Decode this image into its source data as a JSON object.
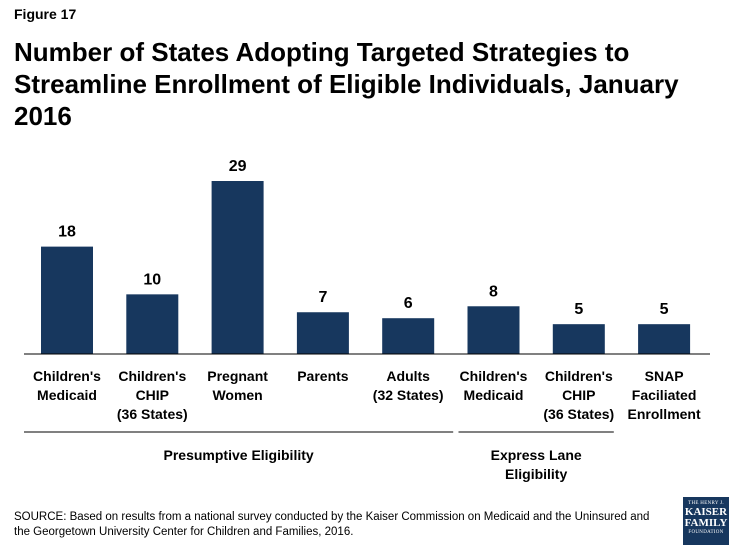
{
  "figure_label": "Figure 17",
  "title_lines": [
    "Number of States Adopting Targeted Strategies to",
    "Streamline Enrollment of Eligible Individuals, January 2016"
  ],
  "source_text": "SOURCE: Based on results from a national survey conducted by the Kaiser Commission on Medicaid and the Uninsured and the Georgetown University Center for Children and Families, 2016.",
  "logo": {
    "line1": "THE HENRY J.",
    "line2": "KAISER",
    "line3": "FAMILY",
    "line4": "FOUNDATION"
  },
  "colors": {
    "bar": "#17375e",
    "axis": "#000000",
    "text": "#000000"
  },
  "chart_data": {
    "type": "bar",
    "categories": [
      [
        "Children's",
        "Medicaid"
      ],
      [
        "Children's",
        "CHIP",
        "(36 States)"
      ],
      [
        "Pregnant",
        "Women"
      ],
      [
        "Parents"
      ],
      [
        "Adults",
        "(32 States)"
      ],
      [
        "Children's",
        "Medicaid"
      ],
      [
        "Children's",
        "CHIP",
        "(36 States)"
      ],
      [
        "SNAP",
        "Faciliated",
        "Enrollment"
      ]
    ],
    "values": [
      18,
      10,
      29,
      7,
      6,
      8,
      5,
      5
    ],
    "ylim": [
      0,
      29
    ],
    "show_data_labels": true,
    "grid": false,
    "groups": [
      {
        "label_lines": [
          "Presumptive Eligibility"
        ],
        "categories": [
          0,
          1,
          2,
          3,
          4
        ]
      },
      {
        "label_lines": [
          "Express Lane",
          "Eligibility"
        ],
        "categories": [
          5,
          6
        ]
      }
    ]
  }
}
